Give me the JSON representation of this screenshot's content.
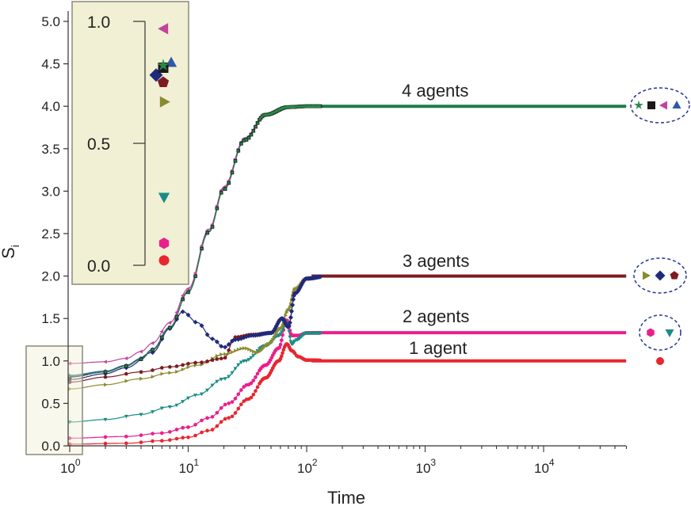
{
  "chart_data": {
    "type": "line",
    "title": "",
    "xlabel": "Time",
    "ylabel": "S",
    "ylabel_subscript": "i",
    "xscale": "log",
    "xlim": [
      1,
      50000
    ],
    "ylim": [
      0.0,
      5.0
    ],
    "yticks": [
      "0.0",
      "0.5",
      "1.0",
      "1.5",
      "2.0",
      "2.5",
      "3.0",
      "3.5",
      "4.0",
      "4.5",
      "5.0"
    ],
    "xticks": [
      {
        "base": "10",
        "exp": "0",
        "value": 1
      },
      {
        "base": "10",
        "exp": "1",
        "value": 10
      },
      {
        "base": "10",
        "exp": "2",
        "value": 100
      },
      {
        "base": "10",
        "exp": "3",
        "value": 1000
      },
      {
        "base": "10",
        "exp": "4",
        "value": 10000
      }
    ],
    "series": [
      {
        "name": "red circle",
        "marker": "circle",
        "color": "#e8262f",
        "group": "1 agent",
        "start": 0.02,
        "final": 1.0,
        "points": [
          [
            1,
            0.02
          ],
          [
            3,
            0.03
          ],
          [
            6,
            0.06
          ],
          [
            10,
            0.1
          ],
          [
            15,
            0.18
          ],
          [
            22,
            0.33
          ],
          [
            32,
            0.55
          ],
          [
            45,
            0.8
          ],
          [
            58,
            1.0
          ],
          [
            68,
            1.2
          ],
          [
            75,
            1.12
          ],
          [
            85,
            1.05
          ],
          [
            100,
            1.01
          ],
          [
            200,
            1.0
          ],
          [
            50000,
            1.0
          ]
        ]
      },
      {
        "name": "magenta hexagon",
        "marker": "hexagon",
        "color": "#ea1f8c",
        "group": "2 agents",
        "start": 0.09,
        "final": 1.333,
        "points": [
          [
            1,
            0.09
          ],
          [
            3,
            0.11
          ],
          [
            6,
            0.15
          ],
          [
            10,
            0.22
          ],
          [
            15,
            0.33
          ],
          [
            22,
            0.5
          ],
          [
            32,
            0.72
          ],
          [
            45,
            0.95
          ],
          [
            58,
            1.15
          ],
          [
            68,
            1.48
          ],
          [
            75,
            1.3
          ],
          [
            85,
            1.3
          ],
          [
            100,
            1.33
          ],
          [
            200,
            1.333
          ],
          [
            50000,
            1.333
          ]
        ]
      },
      {
        "name": "teal down-triangle",
        "marker": "triangle-down",
        "color": "#188d87",
        "group": "2 agents",
        "start": 0.28,
        "final": 1.333,
        "points": [
          [
            1,
            0.28
          ],
          [
            2,
            0.31
          ],
          [
            4,
            0.37
          ],
          [
            7,
            0.46
          ],
          [
            12,
            0.6
          ],
          [
            20,
            0.79
          ],
          [
            30,
            1.0
          ],
          [
            45,
            1.18
          ],
          [
            58,
            1.3
          ],
          [
            68,
            1.45
          ],
          [
            75,
            1.2
          ],
          [
            82,
            1.25
          ],
          [
            100,
            1.33
          ],
          [
            200,
            1.333
          ],
          [
            50000,
            1.333
          ]
        ]
      },
      {
        "name": "olive right-triangle",
        "marker": "triangle-right",
        "color": "#8a8a2e",
        "group": "3 agents",
        "start": 0.67,
        "final": 2.0,
        "points": [
          [
            1,
            0.67
          ],
          [
            2,
            0.72
          ],
          [
            4,
            0.79
          ],
          [
            7,
            0.86
          ],
          [
            12,
            0.95
          ],
          [
            20,
            1.08
          ],
          [
            30,
            1.15
          ],
          [
            38,
            1.1
          ],
          [
            48,
            1.2
          ],
          [
            60,
            1.38
          ],
          [
            70,
            1.6
          ],
          [
            80,
            1.85
          ],
          [
            100,
            1.97
          ],
          [
            150,
            2.0
          ],
          [
            50000,
            2.0
          ]
        ]
      },
      {
        "name": "maroon pentagon",
        "marker": "pentagon",
        "color": "#7c1b21",
        "group": "3 agents",
        "start": 0.75,
        "final": 2.0,
        "points": [
          [
            1,
            0.75
          ],
          [
            2,
            0.81
          ],
          [
            4,
            0.87
          ],
          [
            7,
            0.93
          ],
          [
            12,
            0.98
          ],
          [
            20,
            1.03
          ],
          [
            25,
            1.28
          ],
          [
            35,
            1.31
          ],
          [
            50,
            1.33
          ],
          [
            62,
            1.5
          ],
          [
            70,
            1.4
          ],
          [
            80,
            1.8
          ],
          [
            100,
            1.97
          ],
          [
            150,
            2.0
          ],
          [
            50000,
            2.0
          ]
        ]
      },
      {
        "name": "navy diamond",
        "marker": "diamond",
        "color": "#1f2a7c",
        "group": "3 agents",
        "start": 0.78,
        "final": 2.0,
        "points": [
          [
            1,
            0.78
          ],
          [
            2,
            0.85
          ],
          [
            3,
            0.92
          ],
          [
            5,
            1.1
          ],
          [
            7,
            1.38
          ],
          [
            9,
            1.58
          ],
          [
            12,
            1.45
          ],
          [
            16,
            1.26
          ],
          [
            20,
            1.16
          ],
          [
            25,
            1.25
          ],
          [
            35,
            1.3
          ],
          [
            50,
            1.33
          ],
          [
            62,
            1.5
          ],
          [
            70,
            1.4
          ],
          [
            80,
            1.8
          ],
          [
            100,
            1.97
          ],
          [
            150,
            2.0
          ],
          [
            50000,
            2.0
          ]
        ]
      },
      {
        "name": "pink left-triangle",
        "marker": "triangle-left",
        "color": "#c1439c",
        "group": "4 agents",
        "start": 0.97,
        "final": 4.0,
        "points": [
          [
            1,
            0.97
          ],
          [
            2,
            0.99
          ],
          [
            3,
            1.03
          ],
          [
            4,
            1.11
          ],
          [
            5,
            1.21
          ],
          [
            7,
            1.45
          ],
          [
            10,
            1.85
          ],
          [
            15,
            2.55
          ],
          [
            20,
            3.05
          ],
          [
            30,
            3.62
          ],
          [
            45,
            3.9
          ],
          [
            70,
            3.99
          ],
          [
            100,
            4.0
          ],
          [
            50000,
            4.0
          ]
        ]
      },
      {
        "name": "blue up-triangle",
        "marker": "triangle-up",
        "color": "#3158a7",
        "group": "4 agents",
        "start": 0.83,
        "final": 4.0,
        "points": [
          [
            1,
            0.83
          ],
          [
            2,
            0.88
          ],
          [
            3,
            0.95
          ],
          [
            4,
            1.03
          ],
          [
            5,
            1.14
          ],
          [
            7,
            1.4
          ],
          [
            10,
            1.82
          ],
          [
            15,
            2.53
          ],
          [
            20,
            3.03
          ],
          [
            30,
            3.61
          ],
          [
            45,
            3.9
          ],
          [
            70,
            3.99
          ],
          [
            100,
            4.0
          ],
          [
            50000,
            4.0
          ]
        ]
      },
      {
        "name": "black square",
        "marker": "square",
        "color": "#1a1a1a",
        "group": "4 agents",
        "start": 0.81,
        "final": 4.0,
        "points": [
          [
            1,
            0.81
          ],
          [
            2,
            0.87
          ],
          [
            3,
            0.94
          ],
          [
            4,
            1.02
          ],
          [
            5,
            1.13
          ],
          [
            7,
            1.39
          ],
          [
            10,
            1.81
          ],
          [
            15,
            2.52
          ],
          [
            20,
            3.02
          ],
          [
            30,
            3.6
          ],
          [
            45,
            3.9
          ],
          [
            70,
            3.99
          ],
          [
            100,
            4.0
          ],
          [
            50000,
            4.0
          ]
        ]
      },
      {
        "name": "green star",
        "marker": "star",
        "color": "#2a8a4a",
        "group": "4 agents",
        "start": 0.82,
        "final": 4.0,
        "points": [
          [
            1,
            0.82
          ],
          [
            2,
            0.87
          ],
          [
            3,
            0.94
          ],
          [
            4,
            1.02
          ],
          [
            5,
            1.13
          ],
          [
            7,
            1.39
          ],
          [
            10,
            1.81
          ],
          [
            15,
            2.52
          ],
          [
            20,
            3.02
          ],
          [
            30,
            3.6
          ],
          [
            45,
            3.9
          ],
          [
            70,
            3.99
          ],
          [
            100,
            4.0
          ],
          [
            50000,
            4.0
          ]
        ]
      }
    ],
    "annotations": [
      "4 agents",
      "3 agents",
      "2 agents",
      "1 agent"
    ],
    "inset": {
      "yticks": [
        "0.0",
        "0.5",
        "1.0"
      ],
      "ylim": [
        0.0,
        1.0
      ],
      "description": "zoom of initial values at Time = 10^0"
    }
  }
}
